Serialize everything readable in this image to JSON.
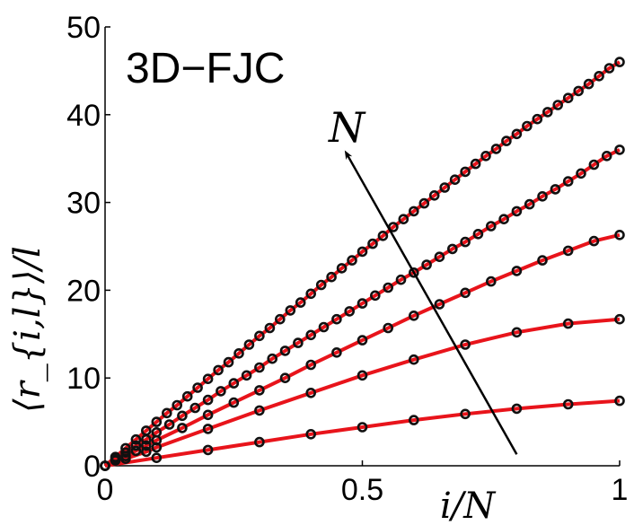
{
  "chart_data": {
    "type": "line",
    "panel_label": "3D−FJC",
    "xlabel": "i/N",
    "ylabel": "⟨r_{i,l}⟩/l",
    "xlim": [
      0,
      1
    ],
    "ylim": [
      0,
      50
    ],
    "x_ticks": [
      0,
      0.5,
      1
    ],
    "x_tick_labels": [
      "0",
      "0.5",
      "1"
    ],
    "y_ticks": [
      0,
      10,
      20,
      30,
      40,
      50
    ],
    "y_tick_labels": [
      "0",
      "10",
      "20",
      "30",
      "40",
      "50"
    ],
    "grid": false,
    "legend": "none",
    "annotation": {
      "text": "N",
      "arrow_from": [
        0.8,
        1.3
      ],
      "arrow_to": [
        0.47,
        35.5
      ]
    },
    "line_color": "#e8141b",
    "marker_edge_color": "#111111",
    "series": [
      {
        "x": [
          0,
          0.1,
          0.2,
          0.3,
          0.4,
          0.5,
          0.6,
          0.7,
          0.8,
          0.9,
          1.0
        ],
        "y": [
          0,
          0.9,
          1.8,
          2.7,
          3.6,
          4.4,
          5.2,
          5.9,
          6.5,
          7.0,
          7.4
        ]
      },
      {
        "x": [
          0,
          0.04,
          0.08,
          0.1,
          0.2,
          0.3,
          0.4,
          0.5,
          0.6,
          0.7,
          0.8,
          0.9,
          1.0
        ],
        "y": [
          0,
          0.8,
          1.6,
          2.1,
          4.2,
          6.3,
          8.3,
          10.3,
          12.1,
          13.8,
          15.2,
          16.2,
          16.7
        ]
      },
      {
        "x": [
          0,
          0.02,
          0.04,
          0.06,
          0.08,
          0.1,
          0.15,
          0.2,
          0.25,
          0.3,
          0.35,
          0.4,
          0.45,
          0.5,
          0.55,
          0.6,
          0.65,
          0.7,
          0.75,
          0.8,
          0.85,
          0.9,
          0.95,
          1.0
        ],
        "y": [
          0,
          0.6,
          1.1,
          1.7,
          2.3,
          2.9,
          4.3,
          5.8,
          7.2,
          8.6,
          10.0,
          11.5,
          12.9,
          14.3,
          15.7,
          17.1,
          18.4,
          19.7,
          21.0,
          22.2,
          23.4,
          24.5,
          25.6,
          26.3
        ]
      },
      {
        "x": [
          0,
          0.02,
          0.04,
          0.06,
          0.08,
          0.1,
          0.125,
          0.15,
          0.175,
          0.2,
          0.225,
          0.25,
          0.275,
          0.3,
          0.325,
          0.35,
          0.375,
          0.4,
          0.425,
          0.45,
          0.475,
          0.5,
          0.525,
          0.55,
          0.575,
          0.6,
          0.625,
          0.65,
          0.675,
          0.7,
          0.725,
          0.75,
          0.775,
          0.8,
          0.825,
          0.85,
          0.875,
          0.9,
          0.925,
          0.95,
          0.975,
          1.0
        ],
        "y": [
          0,
          0.8,
          1.5,
          2.3,
          3.0,
          3.8,
          4.7,
          5.7,
          6.6,
          7.5,
          8.5,
          9.4,
          10.3,
          11.2,
          12.2,
          13.1,
          14.0,
          14.9,
          15.8,
          16.7,
          17.6,
          18.5,
          19.4,
          20.3,
          21.2,
          22.0,
          22.9,
          23.8,
          24.7,
          25.5,
          26.4,
          27.3,
          28.1,
          29.0,
          29.8,
          30.7,
          31.5,
          32.4,
          33.3,
          34.3,
          35.3,
          36.0
        ]
      },
      {
        "x": [
          0,
          0.02,
          0.04,
          0.06,
          0.08,
          0.1,
          0.12,
          0.14,
          0.16,
          0.18,
          0.2,
          0.22,
          0.24,
          0.26,
          0.28,
          0.3,
          0.32,
          0.34,
          0.36,
          0.38,
          0.4,
          0.42,
          0.44,
          0.46,
          0.48,
          0.5,
          0.52,
          0.54,
          0.56,
          0.58,
          0.6,
          0.62,
          0.64,
          0.66,
          0.68,
          0.7,
          0.72,
          0.74,
          0.76,
          0.78,
          0.8,
          0.82,
          0.84,
          0.86,
          0.88,
          0.9,
          0.92,
          0.94,
          0.96,
          0.98,
          1.0
        ],
        "y": [
          0,
          1.0,
          2.0,
          3.0,
          4.0,
          5.0,
          6.0,
          6.9,
          7.9,
          8.9,
          9.9,
          10.9,
          11.8,
          12.8,
          13.8,
          14.8,
          15.7,
          16.7,
          17.7,
          18.6,
          19.6,
          20.6,
          21.5,
          22.5,
          23.4,
          24.4,
          25.3,
          26.2,
          27.2,
          28.1,
          29.0,
          29.9,
          30.8,
          31.7,
          32.6,
          33.5,
          34.4,
          35.3,
          36.1,
          37.0,
          37.8,
          38.7,
          39.5,
          40.3,
          41.1,
          41.9,
          42.7,
          43.5,
          44.4,
          45.3,
          46.0
        ]
      }
    ]
  }
}
